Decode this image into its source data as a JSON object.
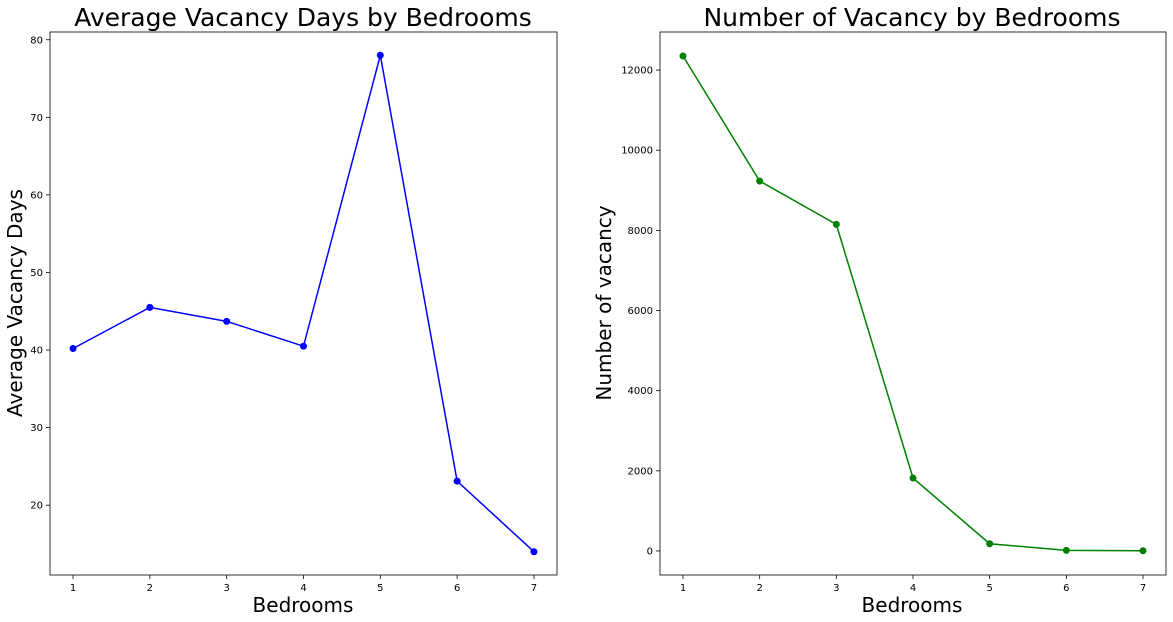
{
  "chart_data": [
    {
      "type": "line",
      "title": "Average Vacancy Days by Bedrooms",
      "xlabel": "Bedrooms",
      "ylabel": "Average Vacancy Days",
      "x": [
        1,
        2,
        3,
        4,
        5,
        6,
        7
      ],
      "xticks": [
        1,
        2,
        3,
        4,
        5,
        6,
        7
      ],
      "xlim": [
        0.7,
        7.3
      ],
      "ylim": [
        11,
        81
      ],
      "yticks": [
        20,
        30,
        40,
        50,
        60,
        70,
        80
      ],
      "series": [
        {
          "values": [
            40.2,
            45.5,
            43.7,
            40.5,
            78.0,
            23.1,
            14.0
          ],
          "color": "#0000ff",
          "marker": "circle"
        }
      ],
      "grid": false
    },
    {
      "type": "line",
      "title": "Number of Vacancy by Bedrooms",
      "xlabel": "Bedrooms",
      "ylabel": "Number of vacancy",
      "x": [
        1,
        2,
        3,
        4,
        5,
        6,
        7
      ],
      "xticks": [
        1,
        2,
        3,
        4,
        5,
        6,
        7
      ],
      "xlim": [
        0.7,
        7.3
      ],
      "ylim": [
        -600,
        12950
      ],
      "yticks": [
        0,
        2000,
        4000,
        6000,
        8000,
        10000,
        12000
      ],
      "series": [
        {
          "values": [
            12350,
            9230,
            8150,
            1820,
            180,
            15,
            5
          ],
          "color": "#008000",
          "marker": "circle"
        }
      ],
      "grid": false
    }
  ]
}
